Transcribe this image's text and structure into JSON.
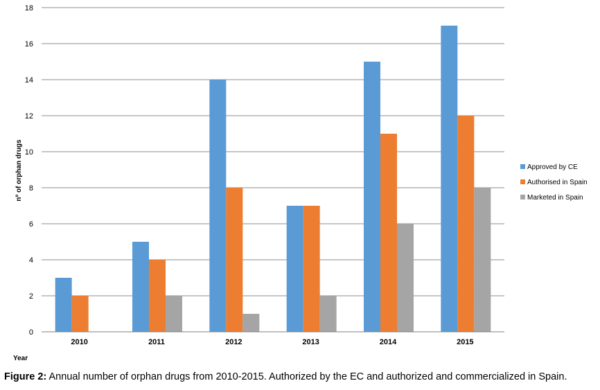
{
  "chart_data": {
    "type": "bar",
    "categories": [
      "2010",
      "2011",
      "2012",
      "2013",
      "2014",
      "2015"
    ],
    "series": [
      {
        "name": "Approved by CE",
        "values": [
          3,
          5,
          14,
          7,
          15,
          17
        ],
        "color": "#5b9bd5"
      },
      {
        "name": "Authorised in Spain",
        "values": [
          2,
          4,
          8,
          7,
          11,
          12
        ],
        "color": "#ed7d31"
      },
      {
        "name": "Marketed in Spain",
        "values": [
          0,
          2,
          1,
          2,
          6,
          8
        ],
        "color": "#a5a5a5"
      }
    ],
    "ylabel": "nº of orphan drugs",
    "xlabel": "Year",
    "ylim": [
      0,
      18
    ],
    "yticks": [
      0,
      2,
      4,
      6,
      8,
      10,
      12,
      14,
      16,
      18
    ],
    "grid": true,
    "legend": "right"
  },
  "caption": {
    "label": "Figure 2:",
    "text": " Annual number of orphan drugs from 2010-2015. Authorized by the EC and authorized and commercialized in Spain."
  }
}
